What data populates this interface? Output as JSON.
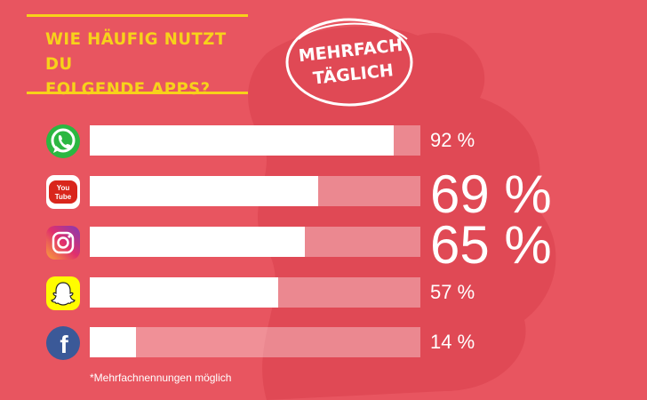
{
  "header": {
    "title_line1": "WIE HÄUFIG NUTZT DU",
    "title_line2": "FOLGENDE APPS?",
    "badge_line1": "MEHRFACH",
    "badge_line2": "TÄGLICH"
  },
  "colors": {
    "background": "#e85560",
    "accent_yellow": "#f7d21a",
    "bar": "#ffffff"
  },
  "footnote": "*Mehrfachnennungen möglich",
  "chart_data": {
    "type": "bar",
    "orientation": "horizontal",
    "categories": [
      "WhatsApp",
      "YouTube",
      "Instagram",
      "Snapchat",
      "Facebook"
    ],
    "values": [
      92,
      69,
      65,
      57,
      14
    ],
    "value_labels": [
      "92 %",
      "69 %",
      "65 %",
      "57 %",
      "14 %"
    ],
    "xlim": [
      0,
      100
    ],
    "title": "WIE HÄUFIG NUTZT DU FOLGENDE APPS?",
    "xlabel": "",
    "ylabel": "",
    "legend": "none",
    "grid": false
  },
  "app_icons": [
    {
      "name": "whatsapp-icon",
      "color": "#2bb741",
      "label": ""
    },
    {
      "name": "youtube-icon",
      "color": "#d9261c",
      "label": "You\nTube"
    },
    {
      "name": "instagram-icon",
      "color": "#c13584",
      "label": ""
    },
    {
      "name": "snapchat-icon",
      "color": "#fffc00",
      "label": ""
    },
    {
      "name": "facebook-icon",
      "color": "#3b5998",
      "label": "f"
    }
  ]
}
